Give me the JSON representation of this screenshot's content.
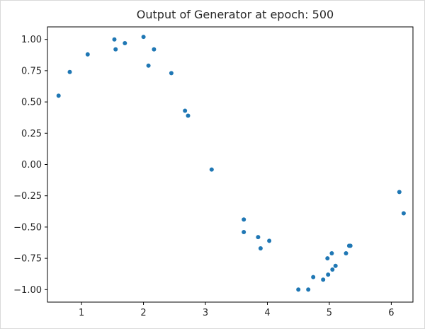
{
  "chart_data": {
    "type": "scatter",
    "title": "Output of Generator at epoch: 500",
    "xlabel": "",
    "ylabel": "",
    "xlim": [
      0.45,
      6.35
    ],
    "ylim": [
      -1.1,
      1.1
    ],
    "xticks": [
      1,
      2,
      3,
      4,
      5,
      6
    ],
    "xtick_labels": [
      "1",
      "2",
      "3",
      "4",
      "5",
      "6"
    ],
    "yticks": [
      -1.0,
      -0.75,
      -0.5,
      -0.25,
      0.0,
      0.25,
      0.5,
      0.75,
      1.0
    ],
    "ytick_labels": [
      "−1.00",
      "−0.75",
      "−0.50",
      "−0.25",
      "0.00",
      "0.25",
      "0.50",
      "0.75",
      "1.00"
    ],
    "grid": false,
    "color": "#1f77b4",
    "series": [
      {
        "points": [
          [
            0.63,
            0.55
          ],
          [
            0.81,
            0.74
          ],
          [
            1.1,
            0.88
          ],
          [
            1.53,
            1.0
          ],
          [
            1.55,
            0.92
          ],
          [
            1.7,
            0.97
          ],
          [
            2.0,
            1.02
          ],
          [
            2.08,
            0.79
          ],
          [
            2.17,
            0.92
          ],
          [
            2.45,
            0.73
          ],
          [
            2.67,
            0.43
          ],
          [
            2.72,
            0.39
          ],
          [
            3.1,
            -0.04
          ],
          [
            3.62,
            -0.44
          ],
          [
            3.62,
            -0.54
          ],
          [
            3.85,
            -0.58
          ],
          [
            3.89,
            -0.67
          ],
          [
            4.03,
            -0.61
          ],
          [
            4.5,
            -1.0
          ],
          [
            4.66,
            -1.0
          ],
          [
            4.74,
            -0.9
          ],
          [
            4.9,
            -0.92
          ],
          [
            4.97,
            -0.75
          ],
          [
            4.98,
            -0.88
          ],
          [
            5.04,
            -0.71
          ],
          [
            5.05,
            -0.84
          ],
          [
            5.1,
            -0.81
          ],
          [
            5.27,
            -0.71
          ],
          [
            5.32,
            -0.65
          ],
          [
            5.34,
            -0.65
          ],
          [
            6.13,
            -0.22
          ],
          [
            6.2,
            -0.39
          ]
        ]
      }
    ]
  }
}
